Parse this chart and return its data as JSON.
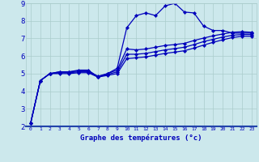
{
  "xlabel": "Graphe des températures (°c)",
  "bg_color": "#cce8ec",
  "grid_color": "#aacccc",
  "line_color": "#0000bb",
  "xlim": [
    -0.5,
    23.5
  ],
  "ylim": [
    2,
    9
  ],
  "xticks": [
    0,
    1,
    2,
    3,
    4,
    5,
    6,
    7,
    8,
    9,
    10,
    11,
    12,
    13,
    14,
    15,
    16,
    17,
    18,
    19,
    20,
    21,
    22,
    23
  ],
  "yticks": [
    2,
    3,
    4,
    5,
    6,
    7,
    8,
    9
  ],
  "curve1_y": [
    2.2,
    4.6,
    5.0,
    5.1,
    5.1,
    5.2,
    5.2,
    4.8,
    5.0,
    5.3,
    7.6,
    8.3,
    8.45,
    8.3,
    8.85,
    9.0,
    8.5,
    8.45,
    7.7,
    7.45,
    7.45,
    7.3,
    7.3,
    7.3
  ],
  "curve2_y": [
    2.2,
    4.6,
    5.0,
    5.1,
    5.1,
    5.15,
    5.15,
    4.85,
    5.0,
    5.2,
    6.4,
    6.35,
    6.4,
    6.5,
    6.6,
    6.65,
    6.72,
    6.88,
    7.02,
    7.15,
    7.25,
    7.35,
    7.38,
    7.35
  ],
  "curve3_y": [
    2.2,
    4.6,
    5.0,
    5.05,
    5.05,
    5.1,
    5.1,
    4.82,
    4.95,
    5.1,
    6.1,
    6.1,
    6.15,
    6.25,
    6.35,
    6.42,
    6.5,
    6.65,
    6.82,
    6.95,
    7.08,
    7.18,
    7.22,
    7.22
  ],
  "curve4_y": [
    2.2,
    4.6,
    5.0,
    5.0,
    5.0,
    5.05,
    5.05,
    4.8,
    4.9,
    5.0,
    5.85,
    5.9,
    5.95,
    6.05,
    6.15,
    6.22,
    6.3,
    6.45,
    6.62,
    6.78,
    6.92,
    7.05,
    7.12,
    7.12
  ]
}
